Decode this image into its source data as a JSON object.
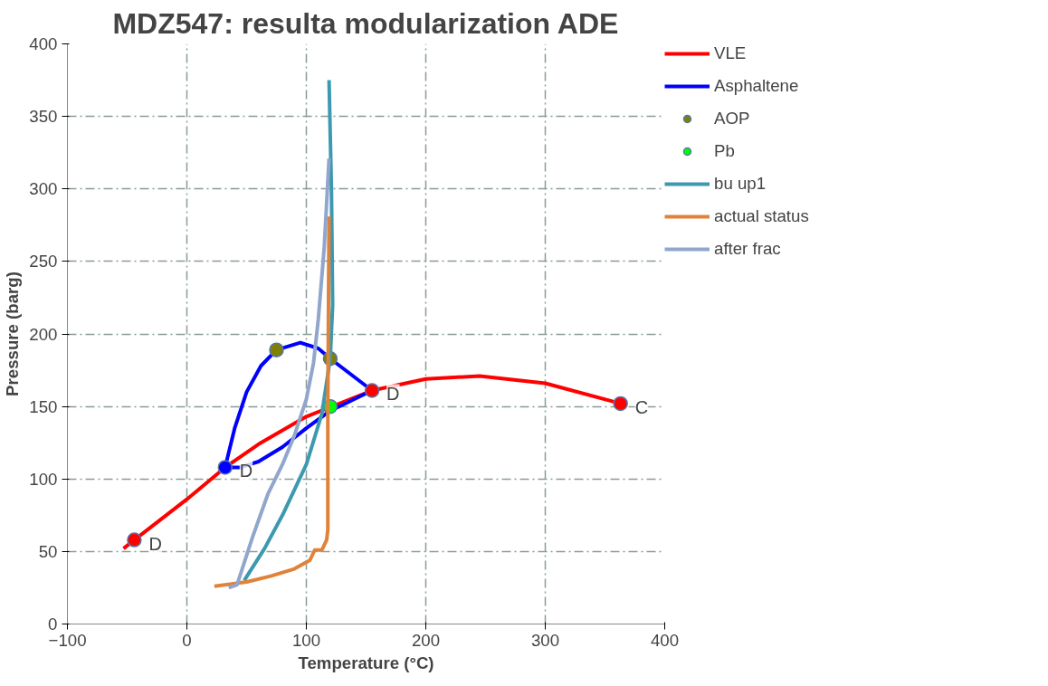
{
  "chart_data": {
    "type": "line",
    "title": "MDZ547: resulta modularization ADE",
    "xlabel": "Temperature (°C)",
    "ylabel": "Pressure (barg)",
    "xlim": [
      -100,
      400
    ],
    "xticks": [
      -100,
      0,
      100,
      200,
      300,
      400
    ],
    "ylim": [
      0,
      400
    ],
    "yticks": [
      0,
      50,
      100,
      150,
      200,
      250,
      300,
      350,
      400
    ],
    "grid": true,
    "legend": "right",
    "line_style": "solid",
    "series": [
      {
        "name": "VLE",
        "color": "#ff0000",
        "x": [
          -53,
          -44,
          0,
          32,
          60,
          100,
          155,
          200,
          245,
          300,
          363
        ],
        "values": [
          52,
          58,
          86,
          108,
          124,
          143,
          161,
          169,
          171,
          166,
          152
        ]
      },
      {
        "name": "Asphaltene",
        "color": "#0000ff",
        "x": [
          32,
          40,
          50,
          62,
          75,
          95,
          110,
          120,
          155
        ],
        "values": [
          108,
          135,
          160,
          178,
          189,
          194,
          190,
          183,
          161
        ]
      },
      {
        "color": "#0000ff",
        "x": [
          32,
          45,
          60,
          80,
          100,
          120,
          155
        ],
        "values": [
          108,
          108,
          112,
          122,
          135,
          147,
          161
        ]
      },
      {
        "name": "AOP",
        "color": "#808000",
        "type": "scatter",
        "marker": "circle",
        "x": [
          75,
          120
        ],
        "values": [
          189,
          183
        ]
      },
      {
        "name": "Pb",
        "color": "#00ff00",
        "type": "scatter",
        "marker": "circle",
        "x": [
          120
        ],
        "values": [
          150
        ]
      },
      {
        "name": "bu up1",
        "color": "#3c99b0",
        "x": [
          48,
          65,
          80,
          100,
          113,
          120,
          122,
          121,
          119
        ],
        "values": [
          30,
          52,
          75,
          110,
          145,
          183,
          220,
          300,
          375
        ]
      },
      {
        "name": "actual status",
        "color": "#e0823a",
        "x": [
          23,
          50,
          70,
          90,
          103,
          107,
          113,
          117,
          118,
          118,
          119
        ],
        "values": [
          26,
          29,
          33,
          38,
          44,
          51,
          51,
          58,
          65,
          150,
          281
        ]
      },
      {
        "name": "after frac",
        "color": "#91a6cc",
        "x": [
          35,
          42,
          55,
          68,
          80,
          90,
          100,
          106,
          110,
          115,
          119
        ],
        "values": [
          25,
          27,
          60,
          90,
          110,
          130,
          155,
          180,
          210,
          260,
          321
        ]
      },
      {
        "color": "#ff0000",
        "type": "scatter",
        "marker": "circle",
        "x": [
          -44,
          155,
          363
        ],
        "values": [
          58,
          161,
          152
        ]
      },
      {
        "color": "#0000ff",
        "type": "scatter",
        "marker": "circle",
        "x": [
          32
        ],
        "values": [
          108
        ]
      }
    ],
    "annotations": [
      {
        "text": "D",
        "x": -44,
        "y": 58
      },
      {
        "text": "D",
        "x": 32,
        "y": 108
      },
      {
        "text": "D",
        "x": 155,
        "y": 161
      },
      {
        "text": "C",
        "x": 363,
        "y": 152
      }
    ]
  }
}
